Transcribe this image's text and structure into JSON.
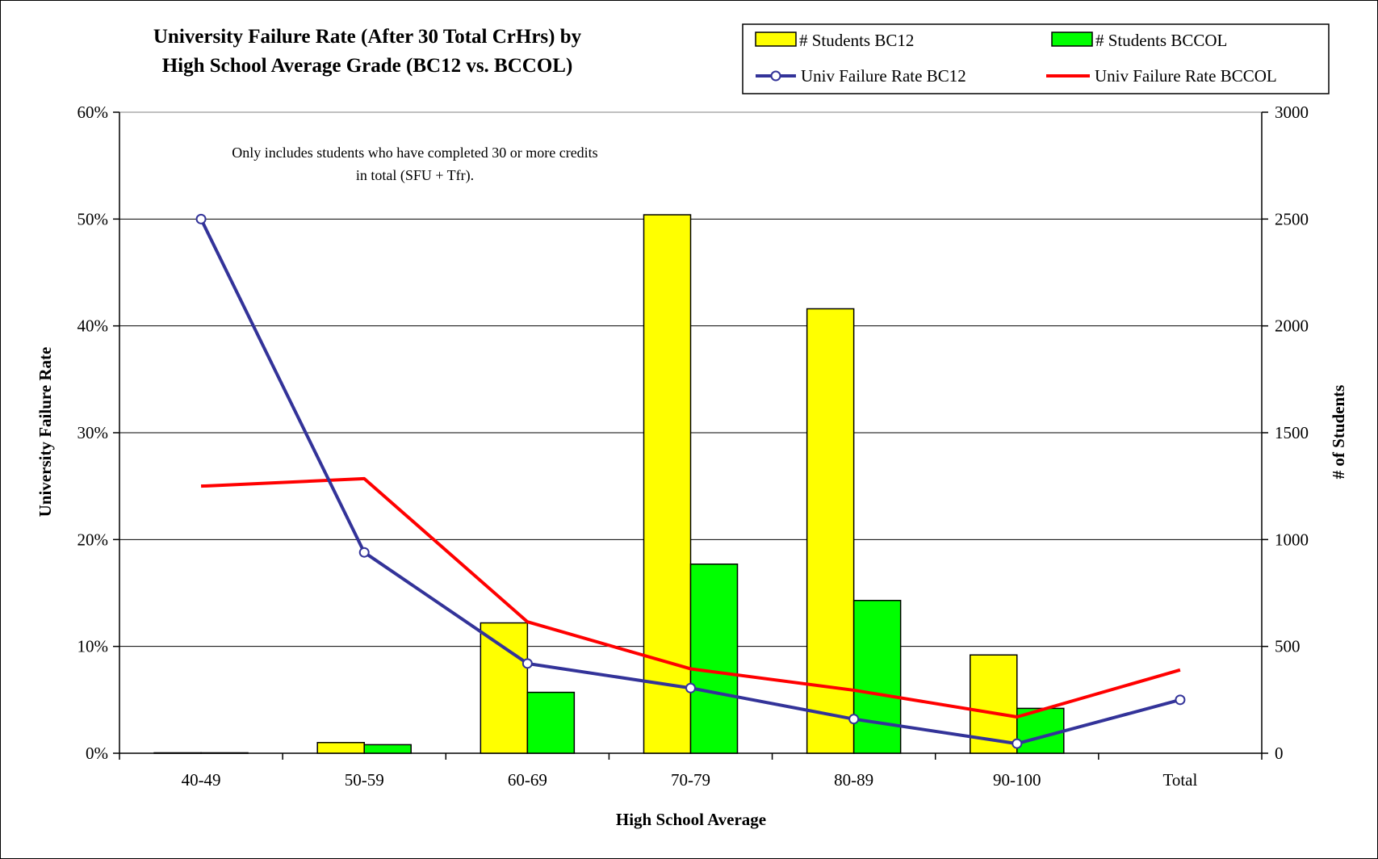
{
  "chart_data": {
    "type": "bar",
    "title": [
      "University Failure Rate (After 30 Total CrHrs) by",
      "High School Average Grade (BC12 vs. BCCOL)"
    ],
    "xlabel": "High School Average",
    "ylabel_left": "University Failure Rate",
    "ylabel_right": "# of Students",
    "categories": [
      "40-49",
      "50-59",
      "60-69",
      "70-79",
      "80-89",
      "90-100",
      "Total"
    ],
    "ylim_left": [
      0,
      0.6
    ],
    "ylim_right": [
      0,
      3000
    ],
    "left_ticks": [
      "0%",
      "10%",
      "20%",
      "30%",
      "40%",
      "50%",
      "60%"
    ],
    "right_ticks": [
      "0",
      "500",
      "1000",
      "1500",
      "2000",
      "2500",
      "3000"
    ],
    "grid": true,
    "legend_position": "top-right",
    "annotation": [
      "Only includes students who have completed 30 or more credits",
      "in total (SFU + Tfr)."
    ],
    "bar_series": [
      {
        "name": "# Students BC12",
        "color": "#FFFF00",
        "axis": "right",
        "values": [
          2,
          50,
          610,
          2520,
          2080,
          460,
          null
        ]
      },
      {
        "name": "# Students BCCOL",
        "color": "#00FF00",
        "axis": "right",
        "values": [
          2,
          40,
          285,
          885,
          715,
          210,
          null
        ]
      }
    ],
    "line_series": [
      {
        "name": "Univ Failure Rate BC12",
        "color": "#333399",
        "marker": "circle",
        "axis": "left",
        "values": [
          0.5,
          0.188,
          0.084,
          0.061,
          0.032,
          0.009,
          0.05
        ]
      },
      {
        "name": "Univ Failure Rate BCCOL",
        "color": "#FF0000",
        "marker": "none",
        "axis": "left",
        "values": [
          0.25,
          0.257,
          0.123,
          0.079,
          0.059,
          0.034,
          0.078
        ]
      }
    ]
  }
}
